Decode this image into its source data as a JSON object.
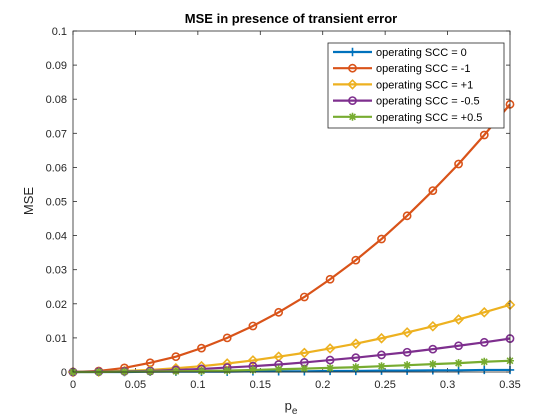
{
  "chart_data": {
    "type": "line",
    "title": "MSE in presence of transient error",
    "xlabel_main": "p",
    "xlabel_sub": "e",
    "ylabel": "MSE",
    "xlim": [
      0,
      0.35
    ],
    "ylim": [
      0,
      0.1
    ],
    "x_ticks": [
      0,
      0.05,
      0.1,
      0.15,
      0.2,
      0.25,
      0.3,
      0.35
    ],
    "y_ticks": [
      0,
      0.01,
      0.02,
      0.03,
      0.04,
      0.05,
      0.06,
      0.07,
      0.08,
      0.09,
      0.1
    ],
    "x_tick_labels": [
      "0",
      "0.05",
      "0.1",
      "0.15",
      "0.2",
      "0.25",
      "0.3",
      "0.35"
    ],
    "y_tick_labels": [
      "0",
      "0.01",
      "0.02",
      "0.03",
      "0.04",
      "0.05",
      "0.06",
      "0.07",
      "0.08",
      "0.09",
      "0.1"
    ],
    "grid": false,
    "legend_position": "top-right",
    "x": [
      0,
      0.0206,
      0.0412,
      0.0618,
      0.0824,
      0.1029,
      0.1235,
      0.1441,
      0.1647,
      0.1853,
      0.2059,
      0.2265,
      0.2471,
      0.2676,
      0.2882,
      0.3088,
      0.3294,
      0.35
    ],
    "series": [
      {
        "name": "operating SCC = 0",
        "color": "#0072BD",
        "marker": "plus",
        "values": [
          0,
          0.0,
          0.0,
          0.0001,
          0.0001,
          0.0001,
          0.0001,
          0.0002,
          0.0002,
          0.0002,
          0.0003,
          0.0003,
          0.0004,
          0.0004,
          0.0005,
          0.0005,
          0.0006,
          0.0006
        ]
      },
      {
        "name": "operating SCC = -1",
        "color": "#D95319",
        "marker": "circle",
        "values": [
          0,
          0.0003,
          0.0012,
          0.0027,
          0.0045,
          0.007,
          0.01,
          0.0135,
          0.0175,
          0.022,
          0.0272,
          0.0328,
          0.039,
          0.0458,
          0.0532,
          0.061,
          0.0695,
          0.0785
        ]
      },
      {
        "name": "operating SCC = +1",
        "color": "#EDB120",
        "marker": "diamond",
        "values": [
          0,
          0.0001,
          0.0003,
          0.0006,
          0.0011,
          0.0017,
          0.0025,
          0.0034,
          0.0045,
          0.0056,
          0.0069,
          0.0083,
          0.0099,
          0.0116,
          0.0134,
          0.0154,
          0.0175,
          0.0197
        ]
      },
      {
        "name": "operating SCC = -0.5",
        "color": "#7E2F8E",
        "marker": "circle",
        "values": [
          0,
          0.0001,
          0.0002,
          0.0003,
          0.0006,
          0.0009,
          0.0013,
          0.0017,
          0.0022,
          0.0028,
          0.0035,
          0.0042,
          0.005,
          0.0058,
          0.0067,
          0.0077,
          0.0087,
          0.0098
        ]
      },
      {
        "name": "operating SCC = +0.5",
        "color": "#77AC30",
        "marker": "asterisk",
        "values": [
          0,
          0.0,
          0.0001,
          0.0001,
          0.0002,
          0.0003,
          0.0004,
          0.0006,
          0.0008,
          0.001,
          0.0012,
          0.0014,
          0.0017,
          0.002,
          0.0023,
          0.0026,
          0.003,
          0.0033
        ]
      }
    ]
  }
}
